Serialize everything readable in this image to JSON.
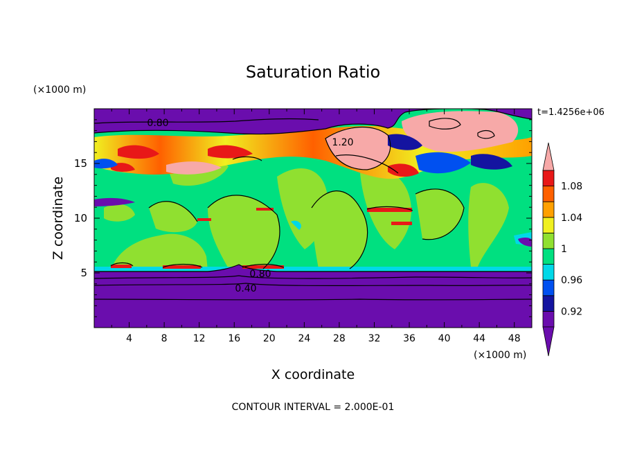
{
  "chart_data": {
    "type": "heatmap",
    "title": "Saturation Ratio",
    "xlabel": "X coordinate",
    "ylabel": "Z coordinate",
    "x_units": "(×1000 m)",
    "y_units": "(×1000 m)",
    "time_label": "t=1.4256e+06",
    "footer": "CONTOUR INTERVAL = 2.000E-01",
    "xlim": [
      0,
      50
    ],
    "ylim": [
      0,
      20
    ],
    "x_ticks": [
      4,
      8,
      12,
      16,
      20,
      24,
      28,
      32,
      36,
      40,
      44,
      48
    ],
    "y_ticks": [
      5,
      10,
      15
    ],
    "colorbar": {
      "levels": [
        0.9,
        0.92,
        0.94,
        0.96,
        0.98,
        1.0,
        1.02,
        1.04,
        1.06,
        1.08,
        1.1
      ],
      "labels": [
        "0.92",
        "0.96",
        "1",
        "1.04",
        "1.08"
      ],
      "label_values": [
        0.92,
        0.96,
        1.0,
        1.04,
        1.08
      ],
      "colors": [
        "#6a0dad",
        "#1414a0",
        "#0050f0",
        "#00d8e8",
        "#00e080",
        "#90e030",
        "#f0f020",
        "#ffa000",
        "#ff6000",
        "#e81818",
        "#f7a9a8"
      ],
      "extend": "both"
    },
    "contour_labels": [
      {
        "text": "0.80",
        "x": 14.5,
        "y": 18.8
      },
      {
        "text": "1.20",
        "x": 28.0,
        "y": 17.0
      },
      {
        "text": "0.80",
        "x": 19.0,
        "y": 4.8
      },
      {
        "text": "0.40",
        "x": 17.5,
        "y": 3.6
      }
    ],
    "regions": {
      "lower_dry_layer": {
        "z_top": 5.1,
        "value": 0.4
      },
      "moist_layer": {
        "z_bottom": 5.1,
        "z_top": 15.5,
        "value": 1.0
      },
      "cirrus_layer": {
        "z_bottom": 14.5,
        "z_top": 18.0,
        "value": 1.05
      },
      "upper_dry_layer": {
        "z_bottom": 18.0,
        "value": 0.8
      },
      "supersaturated_patches": [
        {
          "x": [
            36,
            46
          ],
          "z": [
            17.5,
            19.5
          ],
          "value": 1.2
        },
        {
          "x": [
            25,
            33
          ],
          "z": [
            16.0,
            18.0
          ],
          "value": 1.2
        },
        {
          "x": [
            8,
            18
          ],
          "z": [
            14.5,
            15.5
          ],
          "value": 1.1
        }
      ]
    }
  }
}
